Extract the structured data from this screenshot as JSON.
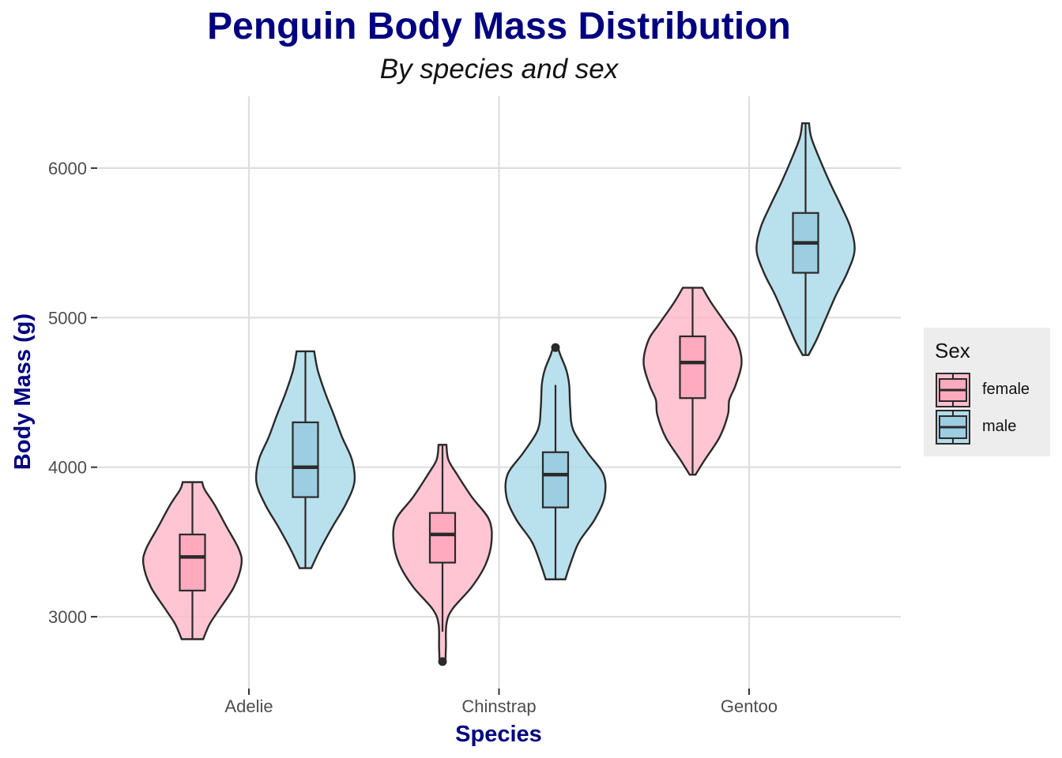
{
  "title": "Penguin Body Mass Distribution",
  "subtitle": "By species and sex",
  "colors": {
    "female": "#ffb6c8",
    "male": "#a8d8e8",
    "outline": "#2a2a2a",
    "title": "#000080",
    "grid": "#dedede"
  },
  "chart_data": {
    "type": "violin",
    "title": "Penguin Body Mass Distribution",
    "subtitle": "By species and sex",
    "xlabel": "Species",
    "ylabel": "Body Mass (g)",
    "categories": [
      "Adelie",
      "Chinstrap",
      "Gentoo"
    ],
    "y_ticks": [
      3000,
      4000,
      5000,
      6000
    ],
    "ylim": [
      2520,
      6480
    ],
    "grid": true,
    "legend": {
      "title": "Sex",
      "position": "right",
      "entries": [
        "female",
        "male"
      ]
    },
    "series": [
      {
        "name": "female",
        "groups": [
          {
            "category": "Adelie",
            "min": 2850,
            "q1": 3175,
            "median": 3400,
            "q3": 3550,
            "max": 3900,
            "whisker_low": 2850,
            "whisker_high": 3900,
            "outliers": [],
            "density": [
              [
                2850,
                0.22
              ],
              [
                2950,
                0.35
              ],
              [
                3050,
                0.55
              ],
              [
                3200,
                0.85
              ],
              [
                3350,
                1.0
              ],
              [
                3450,
                0.95
              ],
              [
                3600,
                0.7
              ],
              [
                3750,
                0.45
              ],
              [
                3850,
                0.25
              ],
              [
                3900,
                0.2
              ]
            ]
          },
          {
            "category": "Chinstrap",
            "min": 2700,
            "q1": 3362,
            "median": 3550,
            "q3": 3694,
            "max": 4150,
            "whisker_low": 2900,
            "whisker_high": 4150,
            "outliers": [
              2700
            ],
            "density": [
              [
                2700,
                0.06
              ],
              [
                2800,
                0.07
              ],
              [
                2950,
                0.08
              ],
              [
                3050,
                0.2
              ],
              [
                3200,
                0.6
              ],
              [
                3350,
                0.88
              ],
              [
                3500,
                1.0
              ],
              [
                3650,
                0.95
              ],
              [
                3800,
                0.6
              ],
              [
                3950,
                0.3
              ],
              [
                4050,
                0.12
              ],
              [
                4150,
                0.08
              ]
            ]
          },
          {
            "category": "Gentoo",
            "min": 3950,
            "q1": 4462,
            "median": 4700,
            "q3": 4875,
            "max": 5200,
            "whisker_low": 3950,
            "whisker_high": 5200,
            "outliers": [],
            "density": [
              [
                3950,
                0.06
              ],
              [
                4050,
                0.25
              ],
              [
                4200,
                0.55
              ],
              [
                4350,
                0.72
              ],
              [
                4450,
                0.75
              ],
              [
                4550,
                0.88
              ],
              [
                4700,
                1.0
              ],
              [
                4850,
                0.9
              ],
              [
                4950,
                0.7
              ],
              [
                5100,
                0.38
              ],
              [
                5200,
                0.2
              ]
            ]
          }
        ]
      },
      {
        "name": "male",
        "groups": [
          {
            "category": "Adelie",
            "min": 3325,
            "q1": 3800,
            "median": 4000,
            "q3": 4300,
            "max": 4775,
            "whisker_low": 3325,
            "whisker_high": 4775,
            "outliers": [],
            "density": [
              [
                3325,
                0.12
              ],
              [
                3450,
                0.3
              ],
              [
                3600,
                0.55
              ],
              [
                3750,
                0.82
              ],
              [
                3900,
                1.0
              ],
              [
                4050,
                0.95
              ],
              [
                4200,
                0.75
              ],
              [
                4350,
                0.58
              ],
              [
                4500,
                0.4
              ],
              [
                4650,
                0.25
              ],
              [
                4775,
                0.18
              ]
            ]
          },
          {
            "category": "Chinstrap",
            "min": 3250,
            "q1": 3731,
            "median": 3950,
            "q3": 4100,
            "max": 4800,
            "whisker_low": 3250,
            "whisker_high": 4550,
            "outliers": [
              4800
            ],
            "density": [
              [
                3250,
                0.2
              ],
              [
                3350,
                0.3
              ],
              [
                3500,
                0.48
              ],
              [
                3650,
                0.8
              ],
              [
                3800,
                1.0
              ],
              [
                3950,
                0.98
              ],
              [
                4100,
                0.65
              ],
              [
                4250,
                0.36
              ],
              [
                4400,
                0.3
              ],
              [
                4550,
                0.28
              ],
              [
                4650,
                0.22
              ],
              [
                4750,
                0.1
              ],
              [
                4800,
                0.05
              ]
            ]
          },
          {
            "category": "Gentoo",
            "min": 4750,
            "q1": 5300,
            "median": 5500,
            "q3": 5700,
            "max": 6300,
            "whisker_low": 4750,
            "whisker_high": 6300,
            "outliers": [],
            "density": [
              [
                4750,
                0.06
              ],
              [
                4850,
                0.22
              ],
              [
                5000,
                0.42
              ],
              [
                5150,
                0.62
              ],
              [
                5300,
                0.85
              ],
              [
                5450,
                1.0
              ],
              [
                5600,
                0.92
              ],
              [
                5750,
                0.72
              ],
              [
                5900,
                0.5
              ],
              [
                6050,
                0.3
              ],
              [
                6200,
                0.12
              ],
              [
                6300,
                0.07
              ]
            ]
          }
        ]
      }
    ]
  }
}
